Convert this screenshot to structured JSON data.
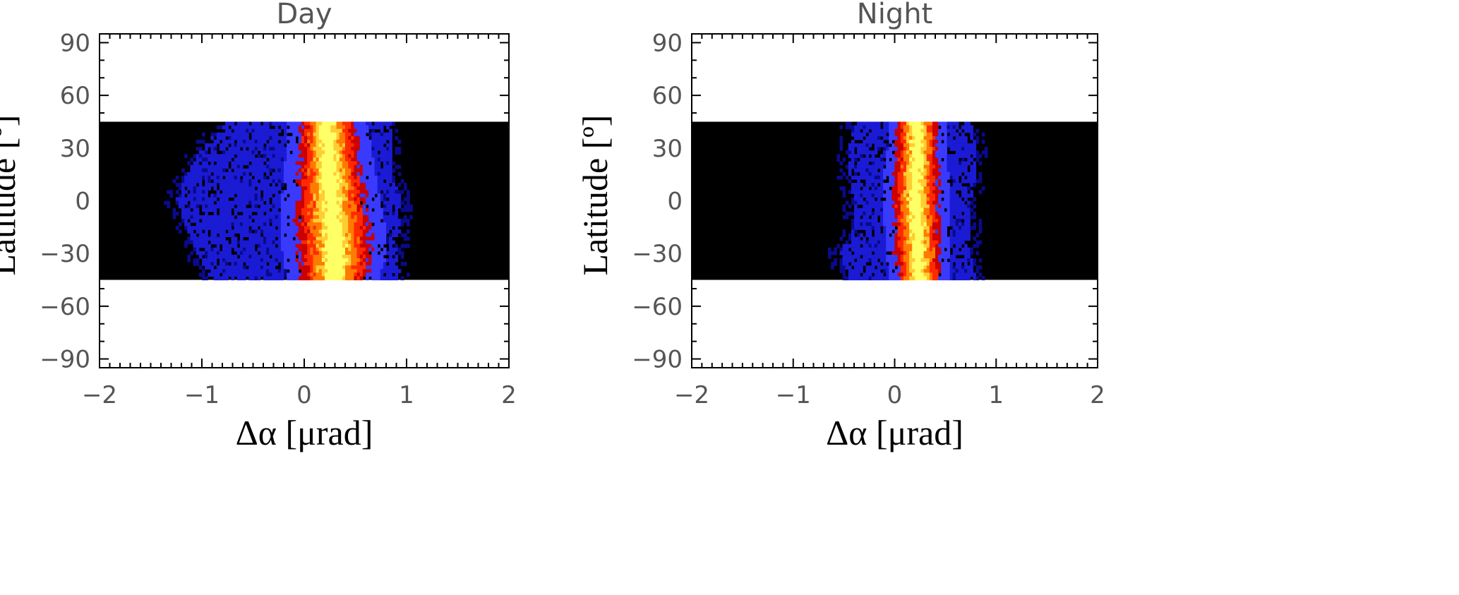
{
  "chart_data": [
    {
      "type": "heatmap",
      "title": "Day",
      "xlabel": "Δα [μrad]",
      "ylabel": "Latitude [º]",
      "xlim": [
        -2,
        2
      ],
      "ylim": [
        -95,
        95
      ],
      "xticks": [
        -2,
        -1,
        0,
        1,
        2
      ],
      "yticks": [
        90,
        60,
        30,
        0,
        -30,
        -60,
        -90
      ],
      "xtick_labels": [
        "−2",
        "−1",
        "0",
        "1",
        "2"
      ],
      "ytick_labels": [
        "90",
        "60",
        "30",
        "0",
        "−30",
        "−60",
        "−90"
      ],
      "data_lat_range": [
        -45,
        45
      ],
      "background": "#000000",
      "colormap": [
        "#000000",
        "#0a0a8c",
        "#1b1bd4",
        "#3a3aff",
        "#cc0000",
        "#ff2a00",
        "#ff7a00",
        "#ffcc33",
        "#ffff66"
      ],
      "distribution": {
        "lat_samples": [
          45,
          30,
          15,
          0,
          -15,
          -30,
          -45
        ],
        "peak_center": [
          0.22,
          0.24,
          0.25,
          0.26,
          0.28,
          0.3,
          0.28
        ],
        "core_half_width": [
          0.12,
          0.13,
          0.14,
          0.15,
          0.16,
          0.16,
          0.14
        ],
        "wing_extent": [
          [
            -0.75,
            0.85
          ],
          [
            -1.0,
            0.85
          ],
          [
            -1.15,
            0.85
          ],
          [
            -1.25,
            0.95
          ],
          [
            -1.15,
            0.95
          ],
          [
            -1.05,
            0.9
          ],
          [
            -0.9,
            0.95
          ]
        ]
      }
    },
    {
      "type": "heatmap",
      "title": "Night",
      "xlabel": "Δα [μrad]",
      "ylabel": "Latitude [º]",
      "xlim": [
        -2,
        2
      ],
      "ylim": [
        -95,
        95
      ],
      "xticks": [
        -2,
        -1,
        0,
        1,
        2
      ],
      "yticks": [
        90,
        60,
        30,
        0,
        -30,
        -60,
        -90
      ],
      "xtick_labels": [
        "−2",
        "−1",
        "0",
        "1",
        "2"
      ],
      "ytick_labels": [
        "90",
        "60",
        "30",
        "0",
        "−30",
        "−60",
        "−90"
      ],
      "data_lat_range": [
        -45,
        45
      ],
      "background": "#000000",
      "colormap": [
        "#000000",
        "#0a0a8c",
        "#1b1bd4",
        "#3a3aff",
        "#cc0000",
        "#ff2a00",
        "#ff7a00",
        "#ffcc33",
        "#ffff66"
      ],
      "distribution": {
        "lat_samples": [
          45,
          30,
          15,
          0,
          -15,
          -30,
          -45
        ],
        "peak_center": [
          0.22,
          0.22,
          0.21,
          0.21,
          0.22,
          0.23,
          0.24
        ],
        "core_half_width": [
          0.09,
          0.09,
          0.1,
          0.1,
          0.1,
          0.1,
          0.09
        ],
        "wing_extent": [
          [
            -0.4,
            0.75
          ],
          [
            -0.45,
            0.8
          ],
          [
            -0.45,
            0.8
          ],
          [
            -0.4,
            0.75
          ],
          [
            -0.4,
            0.75
          ],
          [
            -0.55,
            0.75
          ],
          [
            -0.45,
            0.8
          ]
        ]
      }
    }
  ]
}
